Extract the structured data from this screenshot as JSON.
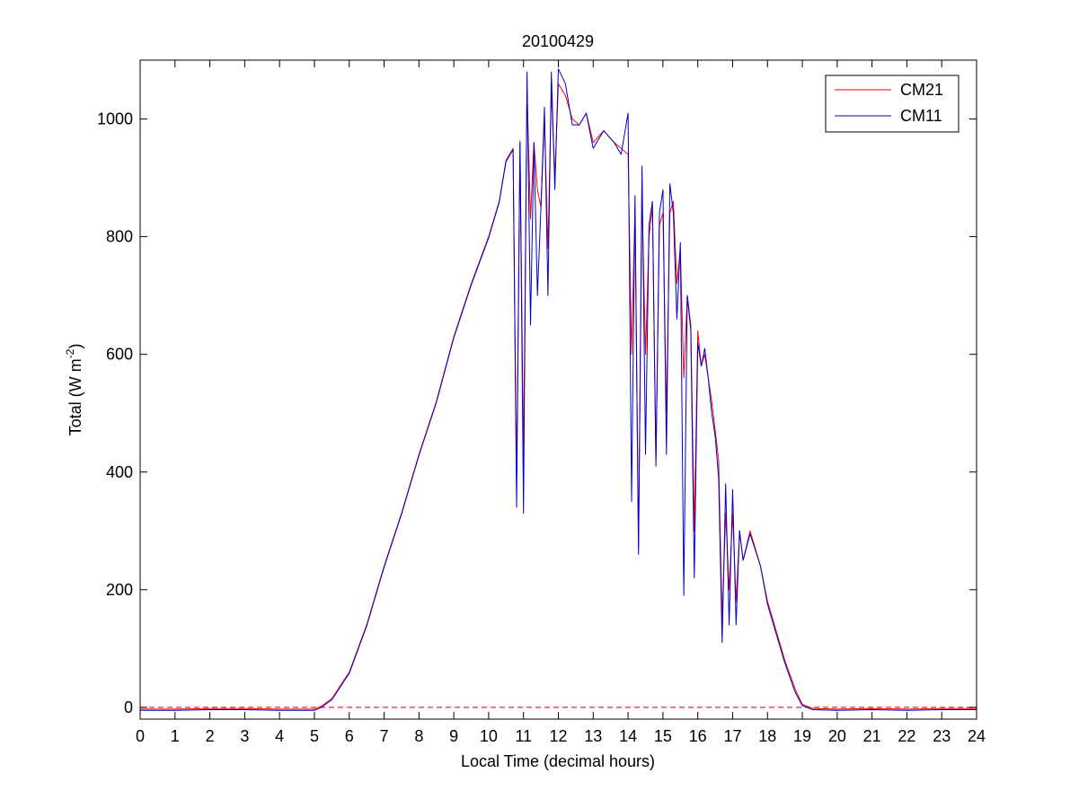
{
  "chart_data": {
    "type": "line",
    "title": "20100429",
    "xlabel": "Local Time (decimal hours)",
    "ylabel": "Total (W m",
    "ylabel_sup": "-2",
    "ylabel_close": ")",
    "xlim": [
      0,
      24
    ],
    "ylim": [
      -20,
      1100
    ],
    "x_ticks": [
      0,
      1,
      2,
      3,
      4,
      5,
      6,
      7,
      8,
      9,
      10,
      11,
      12,
      13,
      14,
      15,
      16,
      17,
      18,
      19,
      20,
      21,
      22,
      23,
      24
    ],
    "y_ticks": [
      0,
      200,
      400,
      600,
      800,
      1000
    ],
    "grid": false,
    "legend_position": "top-right",
    "reference_line": {
      "y": 0,
      "style": "dashed",
      "color": "#cc0000"
    },
    "series": [
      {
        "name": "CM21",
        "color": "#ff0000",
        "x": [
          0,
          1,
          2,
          3,
          4,
          5,
          5.2,
          5.5,
          6,
          6.5,
          7,
          7.5,
          8,
          8.5,
          9,
          9.5,
          10,
          10.3,
          10.5,
          10.6,
          10.7,
          10.8,
          10.9,
          11.0,
          11.1,
          11.2,
          11.3,
          11.4,
          11.5,
          11.6,
          11.7,
          11.8,
          11.9,
          12.0,
          12.2,
          12.4,
          12.6,
          12.8,
          13.0,
          13.3,
          13.6,
          13.8,
          14.0,
          14.1,
          14.2,
          14.3,
          14.4,
          14.5,
          14.6,
          14.7,
          14.8,
          14.9,
          15.0,
          15.1,
          15.2,
          15.3,
          15.4,
          15.5,
          15.6,
          15.7,
          15.8,
          15.9,
          16.0,
          16.1,
          16.2,
          16.3,
          16.4,
          16.5,
          16.6,
          16.7,
          16.8,
          16.9,
          17.0,
          17.1,
          17.2,
          17.3,
          17.5,
          17.8,
          18.0,
          18.5,
          18.8,
          19.0,
          19.3,
          20,
          21,
          22,
          23,
          24
        ],
        "values": [
          -3,
          -3,
          -2,
          -2,
          -3,
          -3,
          2,
          15,
          60,
          140,
          240,
          330,
          430,
          520,
          630,
          720,
          800,
          860,
          930,
          940,
          950,
          380,
          960,
          420,
          1050,
          830,
          960,
          880,
          850,
          1000,
          780,
          1050,
          900,
          1060,
          1040,
          1000,
          990,
          1010,
          960,
          980,
          960,
          950,
          940,
          600,
          850,
          270,
          870,
          600,
          800,
          850,
          420,
          820,
          840,
          500,
          840,
          860,
          720,
          780,
          560,
          700,
          650,
          300,
          640,
          580,
          600,
          560,
          520,
          470,
          420,
          150,
          330,
          200,
          330,
          180,
          300,
          250,
          300,
          240,
          180,
          80,
          30,
          5,
          -2,
          -3,
          -2,
          -3,
          -2,
          -2
        ]
      },
      {
        "name": "CM11",
        "color": "#0000cc",
        "x": [
          0,
          1,
          2,
          3,
          4,
          5,
          5.2,
          5.5,
          6,
          6.5,
          7,
          7.5,
          8,
          8.5,
          9,
          9.5,
          10,
          10.3,
          10.5,
          10.6,
          10.7,
          10.8,
          10.9,
          11.0,
          11.1,
          11.2,
          11.3,
          11.4,
          11.5,
          11.6,
          11.7,
          11.8,
          11.9,
          12.0,
          12.2,
          12.4,
          12.6,
          12.8,
          13.0,
          13.3,
          13.6,
          13.8,
          14.0,
          14.1,
          14.2,
          14.3,
          14.4,
          14.5,
          14.6,
          14.7,
          14.8,
          14.9,
          15.0,
          15.1,
          15.2,
          15.3,
          15.4,
          15.5,
          15.6,
          15.7,
          15.8,
          15.9,
          16.0,
          16.1,
          16.2,
          16.3,
          16.4,
          16.5,
          16.6,
          16.7,
          16.8,
          16.9,
          17.0,
          17.1,
          17.2,
          17.3,
          17.5,
          17.8,
          18.0,
          18.5,
          18.8,
          19.0,
          19.3,
          20,
          21,
          22,
          23,
          24
        ],
        "values": [
          -5,
          -5,
          -4,
          -4,
          -5,
          -5,
          0,
          13,
          58,
          138,
          238,
          328,
          428,
          518,
          628,
          718,
          798,
          858,
          928,
          938,
          948,
          340,
          962,
          330,
          1080,
          650,
          960,
          700,
          850,
          1020,
          700,
          1080,
          880,
          1085,
          1060,
          990,
          990,
          1010,
          950,
          980,
          960,
          940,
          1010,
          350,
          870,
          260,
          920,
          430,
          820,
          860,
          410,
          840,
          880,
          430,
          890,
          840,
          660,
          790,
          190,
          700,
          640,
          220,
          620,
          580,
          610,
          560,
          500,
          460,
          390,
          110,
          380,
          140,
          370,
          140,
          300,
          250,
          295,
          240,
          175,
          75,
          25,
          3,
          -4,
          -5,
          -4,
          -5,
          -4,
          -4
        ]
      }
    ]
  }
}
